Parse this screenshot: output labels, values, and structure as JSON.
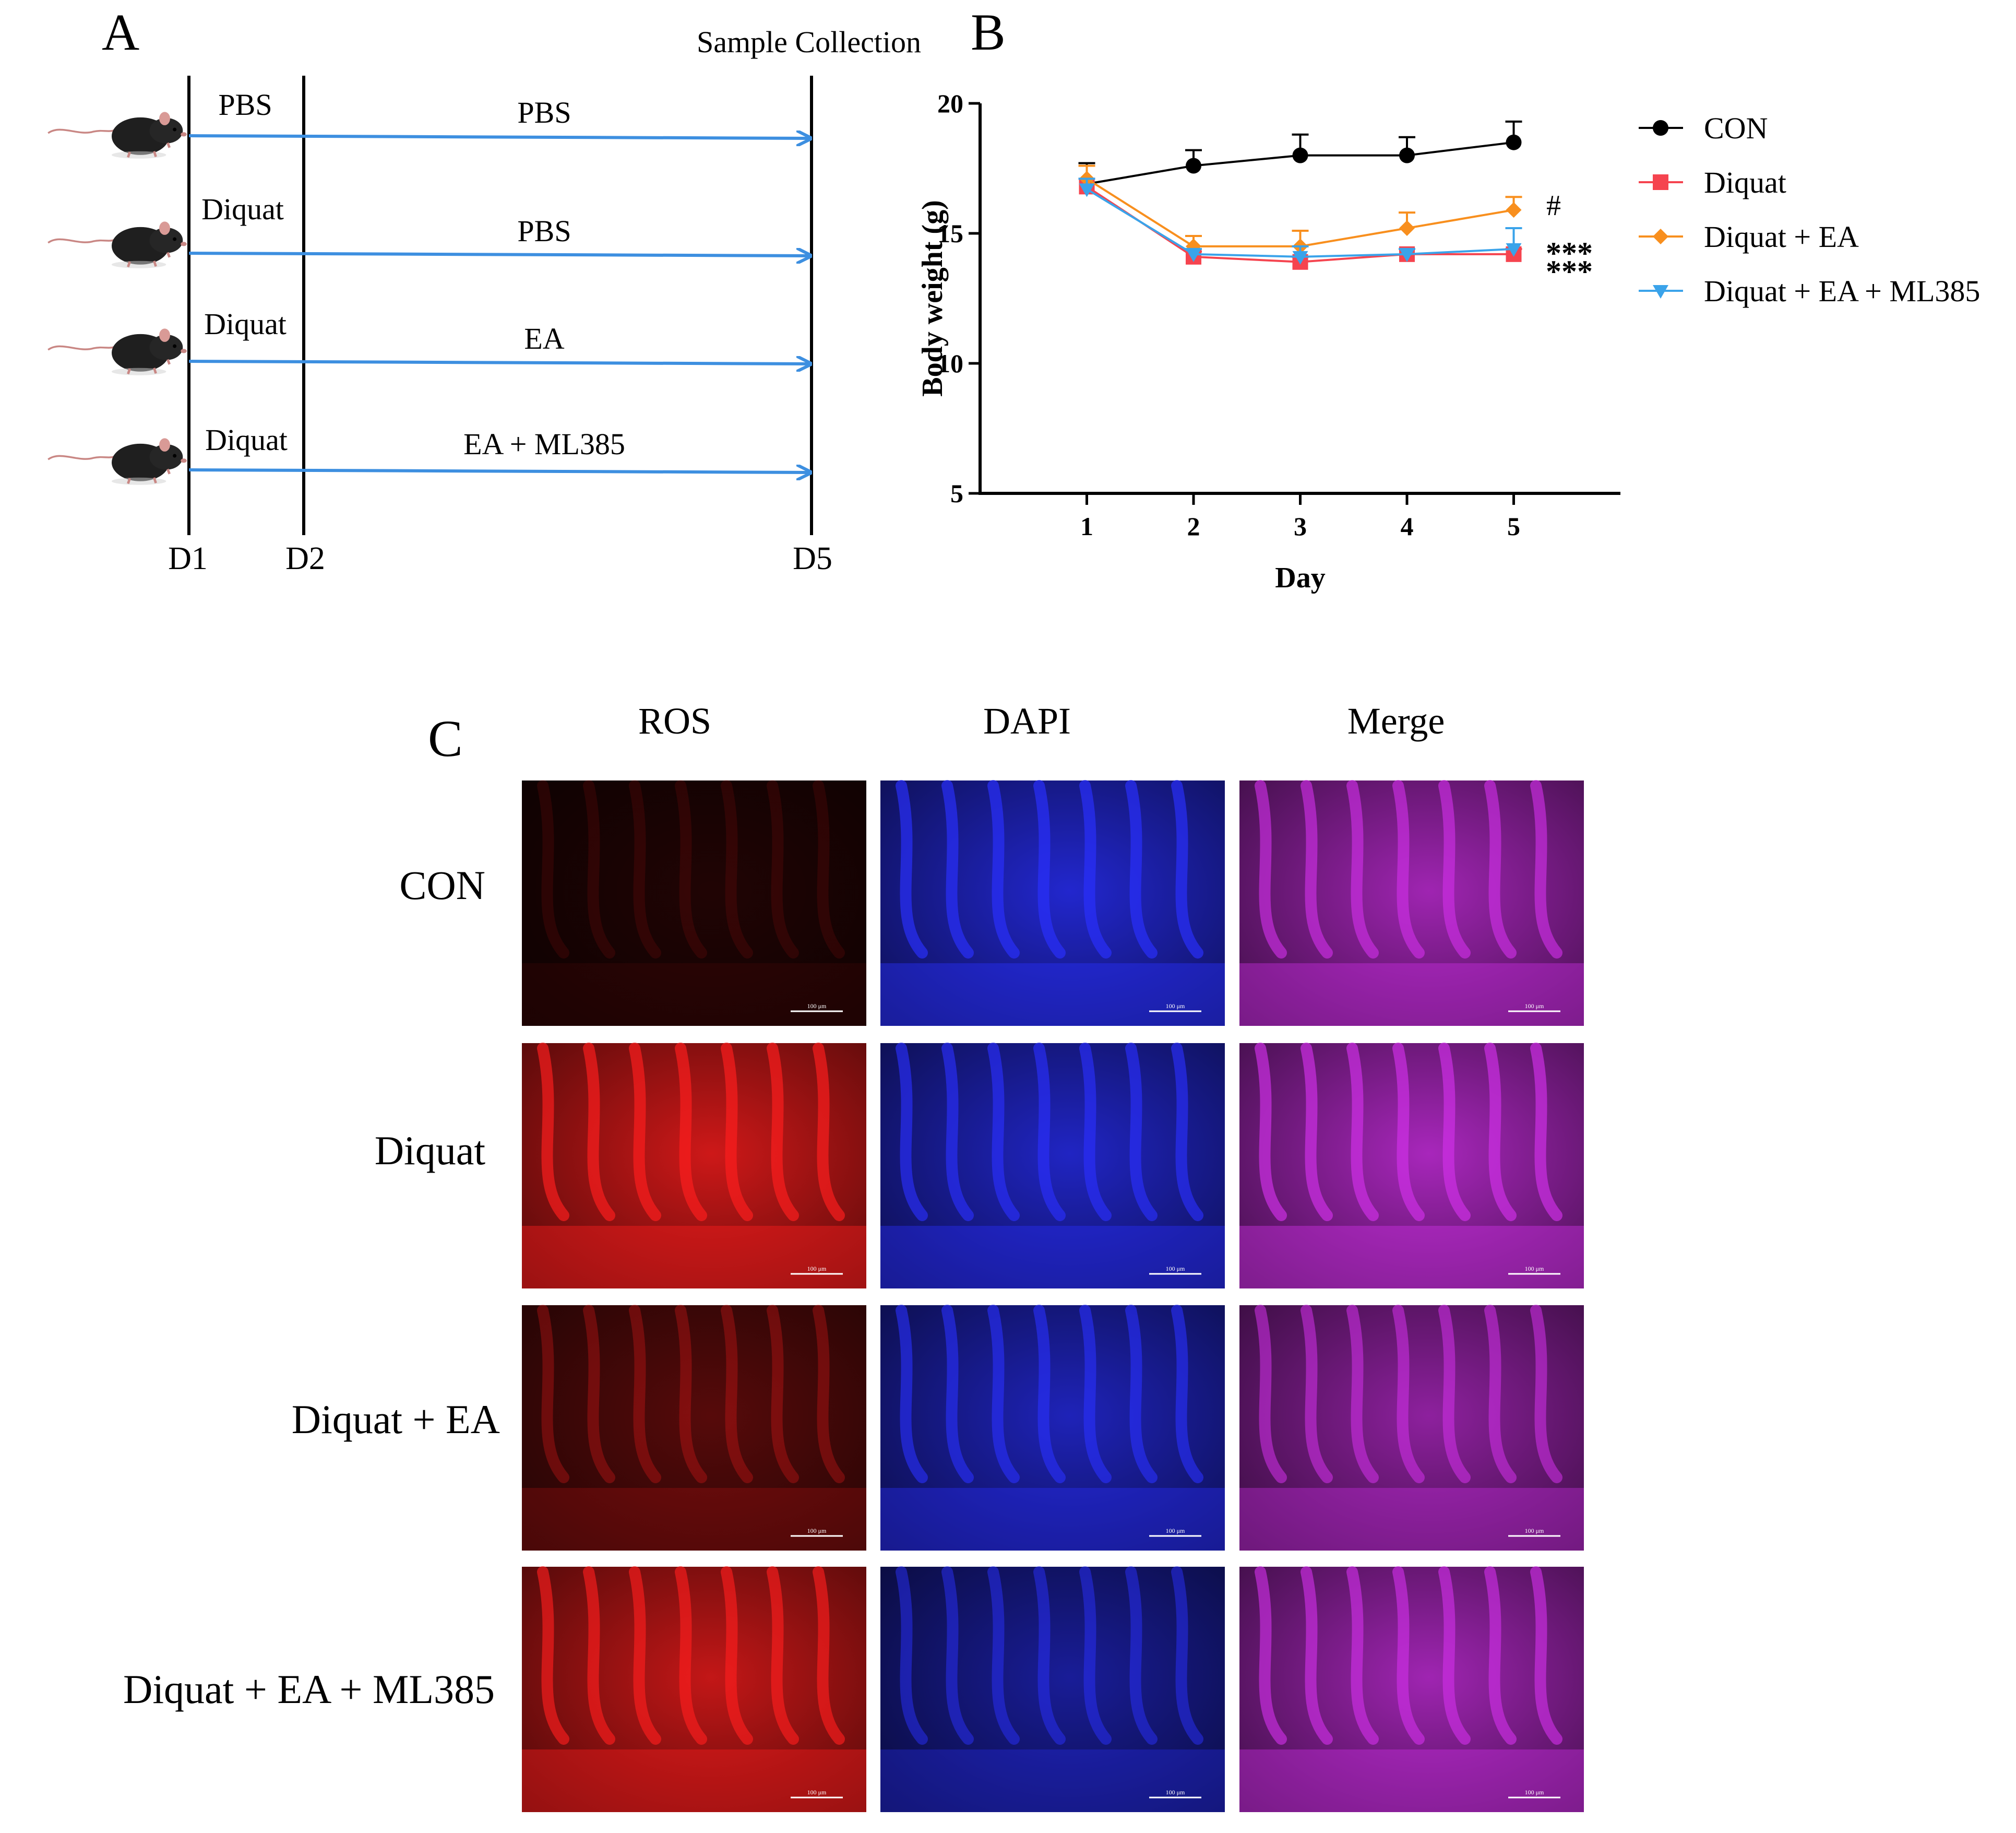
{
  "panel_a": {
    "label": "A",
    "sample_collection": "Sample Collection",
    "day_labels": [
      "D1",
      "D2",
      "D5"
    ],
    "rows": [
      {
        "first": "PBS",
        "second": "PBS"
      },
      {
        "first": "Diquat",
        "second": "PBS"
      },
      {
        "first": "Diquat",
        "second": "EA"
      },
      {
        "first": "Diquat",
        "second": "EA + ML385"
      }
    ],
    "colors": {
      "arrow": "#3d8fe0",
      "line": "#000000"
    }
  },
  "panel_b": {
    "label": "B",
    "sig_labels": {
      "hash": "#",
      "star1": "***",
      "star2": "***"
    }
  },
  "chart_data": {
    "type": "line",
    "title": "",
    "xlabel": "Day",
    "ylabel": "Body weight (g)",
    "x": [
      1,
      2,
      3,
      4,
      5
    ],
    "xlim": [
      0,
      6
    ],
    "ylim": [
      5,
      20
    ],
    "yticks": [
      5,
      10,
      15,
      20
    ],
    "legend_position": "right",
    "series": [
      {
        "name": "CON",
        "color": "#000000",
        "marker": "circle",
        "values": [
          16.9,
          17.6,
          18.0,
          18.0,
          18.5
        ],
        "errors": [
          0.8,
          0.6,
          0.8,
          0.7,
          0.8
        ]
      },
      {
        "name": "Diquat",
        "color": "#f5444f",
        "marker": "square",
        "values": [
          16.8,
          14.1,
          13.9,
          14.2,
          14.2
        ],
        "errors": [
          0.3,
          0.2,
          0.2,
          0.2,
          0.2
        ]
      },
      {
        "name": "Diquat + EA",
        "color": "#f88f1e",
        "marker": "diamond",
        "values": [
          17.1,
          14.5,
          14.5,
          15.2,
          15.9
        ],
        "errors": [
          0.5,
          0.4,
          0.6,
          0.6,
          0.5
        ]
      },
      {
        "name": "Diquat + EA + ML385",
        "color": "#3aa3ea",
        "marker": "triangle-down",
        "values": [
          16.7,
          14.2,
          14.1,
          14.2,
          14.4
        ],
        "errors": [
          0.4,
          0.2,
          0.4,
          0.2,
          0.8
        ]
      }
    ]
  },
  "panel_c": {
    "label": "C",
    "columns": [
      "ROS",
      "DAPI",
      "Merge"
    ],
    "rows": [
      "CON",
      "Diquat",
      "Diquat + EA",
      "Diquat + EA + ML385"
    ],
    "scale_bar_text": "100 μm",
    "intensity": {
      "ROS": [
        0.15,
        0.95,
        0.4,
        0.9
      ],
      "DAPI": [
        0.95,
        0.9,
        0.85,
        0.7
      ],
      "Merge": [
        0.9,
        0.95,
        0.8,
        0.9
      ]
    },
    "colors": {
      "red": "#ff1e1e",
      "blue": "#2a30ff",
      "magenta": "#d030e8"
    }
  }
}
